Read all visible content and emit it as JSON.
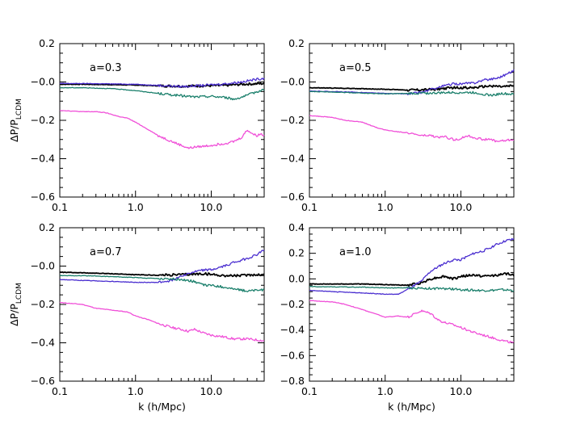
{
  "chart_data": [
    {
      "type": "line",
      "annotation": "a=0.3",
      "xlabel": "",
      "ylabel": "ΔP/P_LCDM",
      "x_scale": "log",
      "xlim": [
        0.1,
        50
      ],
      "ylim": [
        -0.6,
        0.2
      ],
      "xticks": [
        0.1,
        1.0,
        10.0
      ],
      "xtick_labels": [
        "0.1",
        "1.0",
        "10.0"
      ],
      "yticks": [
        -0.6,
        -0.4,
        -0.2,
        0.0,
        0.2
      ],
      "ytick_labels": [
        "−0.6",
        "−0.4",
        "−0.2",
        "−0.0",
        "0.2"
      ],
      "series": [
        {
          "color": "#000000",
          "x": [
            0.1,
            0.2,
            0.5,
            1,
            2,
            4,
            8,
            15,
            25,
            35,
            50
          ],
          "y": [
            -0.012,
            -0.012,
            -0.014,
            -0.016,
            -0.02,
            -0.022,
            -0.02,
            -0.018,
            -0.012,
            -0.01,
            -0.008
          ]
        },
        {
          "color": "#4b2fd0",
          "x": [
            0.1,
            0.2,
            0.5,
            1,
            2,
            4,
            8,
            15,
            25,
            35,
            50
          ],
          "y": [
            -0.008,
            -0.008,
            -0.01,
            -0.012,
            -0.018,
            -0.024,
            -0.018,
            -0.01,
            0.0,
            0.01,
            0.02
          ]
        },
        {
          "color": "#1a7f6b",
          "x": [
            0.1,
            0.2,
            0.5,
            1,
            2,
            4,
            6,
            10,
            15,
            20,
            30,
            40,
            50
          ],
          "y": [
            -0.03,
            -0.03,
            -0.035,
            -0.045,
            -0.06,
            -0.072,
            -0.078,
            -0.075,
            -0.08,
            -0.09,
            -0.07,
            -0.05,
            -0.04
          ]
        },
        {
          "color": "#f050d8",
          "x": [
            0.1,
            0.2,
            0.3,
            0.4,
            0.6,
            0.8,
            1.0,
            1.5,
            2,
            3,
            4,
            5,
            6,
            8,
            10,
            15,
            20,
            25,
            30,
            35,
            40,
            45,
            50
          ],
          "y": [
            -0.148,
            -0.155,
            -0.155,
            -0.16,
            -0.18,
            -0.19,
            -0.21,
            -0.25,
            -0.28,
            -0.31,
            -0.33,
            -0.345,
            -0.34,
            -0.335,
            -0.33,
            -0.32,
            -0.31,
            -0.29,
            -0.25,
            -0.27,
            -0.28,
            -0.27,
            -0.28
          ]
        }
      ]
    },
    {
      "type": "line",
      "annotation": "a=0.5",
      "xlabel": "",
      "ylabel": "",
      "x_scale": "log",
      "xlim": [
        0.1,
        50
      ],
      "ylim": [
        -0.6,
        0.2
      ],
      "xticks": [
        0.1,
        1.0,
        10.0
      ],
      "xtick_labels": [
        "0.1",
        "1.0",
        "10.0"
      ],
      "yticks": [
        -0.6,
        -0.4,
        -0.2,
        0.0,
        0.2
      ],
      "ytick_labels": [
        "−0.6",
        "−0.4",
        "−0.2",
        "−0.0",
        "0.2"
      ],
      "series": [
        {
          "color": "#000000",
          "x": [
            0.1,
            0.2,
            0.5,
            1,
            2,
            4,
            8,
            15,
            25,
            35,
            50
          ],
          "y": [
            -0.03,
            -0.032,
            -0.035,
            -0.038,
            -0.042,
            -0.04,
            -0.03,
            -0.03,
            -0.02,
            -0.025,
            -0.02
          ]
        },
        {
          "color": "#4b2fd0",
          "x": [
            0.1,
            0.2,
            0.5,
            1,
            2,
            3,
            4,
            6,
            8,
            10,
            15,
            20,
            30,
            40,
            50
          ],
          "y": [
            -0.048,
            -0.05,
            -0.055,
            -0.06,
            -0.062,
            -0.055,
            -0.04,
            -0.02,
            -0.01,
            -0.01,
            -0.005,
            0.01,
            0.02,
            0.04,
            0.06
          ]
        },
        {
          "color": "#1a7f6b",
          "x": [
            0.1,
            0.2,
            0.5,
            1,
            2,
            4,
            8,
            15,
            25,
            35,
            50
          ],
          "y": [
            -0.05,
            -0.052,
            -0.058,
            -0.062,
            -0.06,
            -0.058,
            -0.055,
            -0.055,
            -0.07,
            -0.06,
            -0.065
          ]
        },
        {
          "color": "#f050d8",
          "x": [
            0.1,
            0.2,
            0.3,
            0.5,
            0.8,
            1.0,
            1.5,
            2,
            3,
            4,
            5,
            6,
            8,
            10,
            12,
            15,
            20,
            25,
            30,
            40,
            50
          ],
          "y": [
            -0.175,
            -0.185,
            -0.2,
            -0.21,
            -0.24,
            -0.25,
            -0.26,
            -0.265,
            -0.28,
            -0.28,
            -0.29,
            -0.285,
            -0.3,
            -0.295,
            -0.28,
            -0.29,
            -0.3,
            -0.3,
            -0.31,
            -0.305,
            -0.3
          ]
        }
      ]
    },
    {
      "type": "line",
      "annotation": "a=0.7",
      "xlabel": "k (h/Mpc)",
      "ylabel": "ΔP/P_LCDM",
      "x_scale": "log",
      "xlim": [
        0.1,
        50
      ],
      "ylim": [
        -0.6,
        0.2
      ],
      "xticks": [
        0.1,
        1.0,
        10.0
      ],
      "xtick_labels": [
        "0.1",
        "1.0",
        "10.0"
      ],
      "yticks": [
        -0.6,
        -0.4,
        -0.2,
        0.0,
        0.2
      ],
      "ytick_labels": [
        "−0.6",
        "−0.4",
        "−0.2",
        "−0.0",
        "0.2"
      ],
      "series": [
        {
          "color": "#000000",
          "x": [
            0.1,
            0.2,
            0.5,
            1,
            2,
            4,
            8,
            15,
            25,
            35,
            50
          ],
          "y": [
            -0.032,
            -0.035,
            -0.04,
            -0.045,
            -0.048,
            -0.045,
            -0.04,
            -0.05,
            -0.05,
            -0.045,
            -0.045
          ]
        },
        {
          "color": "#4b2fd0",
          "x": [
            0.1,
            0.2,
            0.5,
            1,
            2,
            3,
            4,
            6,
            8,
            10,
            15,
            20,
            30,
            40,
            50
          ],
          "y": [
            -0.07,
            -0.075,
            -0.08,
            -0.085,
            -0.085,
            -0.075,
            -0.05,
            -0.03,
            -0.02,
            -0.02,
            0.0,
            0.02,
            0.04,
            0.06,
            0.085
          ]
        },
        {
          "color": "#1a7f6b",
          "x": [
            0.1,
            0.2,
            0.5,
            1,
            2,
            4,
            6,
            8,
            10,
            15,
            20,
            30,
            40,
            50
          ],
          "y": [
            -0.05,
            -0.05,
            -0.055,
            -0.06,
            -0.065,
            -0.07,
            -0.08,
            -0.1,
            -0.1,
            -0.11,
            -0.12,
            -0.13,
            -0.125,
            -0.125
          ]
        },
        {
          "color": "#f050d8",
          "x": [
            0.1,
            0.2,
            0.3,
            0.5,
            0.8,
            1.0,
            1.5,
            2,
            3,
            4,
            5,
            6,
            8,
            10,
            15,
            20,
            30,
            40,
            50
          ],
          "y": [
            -0.19,
            -0.2,
            -0.22,
            -0.23,
            -0.24,
            -0.26,
            -0.28,
            -0.3,
            -0.32,
            -0.33,
            -0.34,
            -0.33,
            -0.35,
            -0.36,
            -0.37,
            -0.38,
            -0.38,
            -0.385,
            -0.39
          ]
        }
      ]
    },
    {
      "type": "line",
      "annotation": "a=1.0",
      "xlabel": "k (h/Mpc)",
      "ylabel": "",
      "x_scale": "log",
      "xlim": [
        0.1,
        50
      ],
      "ylim": [
        -0.8,
        0.4
      ],
      "xticks": [
        0.1,
        1.0,
        10.0
      ],
      "xtick_labels": [
        "0.1",
        "1.0",
        "10.0"
      ],
      "yticks": [
        -0.8,
        -0.6,
        -0.4,
        -0.2,
        0.0,
        0.2,
        0.4
      ],
      "ytick_labels": [
        "−0.8",
        "−0.6",
        "−0.4",
        "−0.2",
        "0.0",
        "0.2",
        "0.4"
      ],
      "series": [
        {
          "color": "#000000",
          "x": [
            0.1,
            0.2,
            0.5,
            1,
            2,
            3,
            4,
            6,
            8,
            10,
            15,
            20,
            30,
            40,
            50
          ],
          "y": [
            -0.04,
            -0.04,
            -0.04,
            -0.045,
            -0.05,
            -0.03,
            0.0,
            0.02,
            0.0,
            0.02,
            0.03,
            0.02,
            0.03,
            0.04,
            0.03
          ]
        },
        {
          "color": "#4b2fd0",
          "x": [
            0.1,
            0.2,
            0.5,
            1,
            1.5,
            2,
            3,
            4,
            6,
            8,
            10,
            15,
            20,
            30,
            40,
            50
          ],
          "y": [
            -0.09,
            -0.1,
            -0.11,
            -0.12,
            -0.12,
            -0.08,
            -0.02,
            0.06,
            0.12,
            0.15,
            0.15,
            0.2,
            0.22,
            0.27,
            0.3,
            0.31
          ]
        },
        {
          "color": "#1a7f6b",
          "x": [
            0.1,
            0.2,
            0.5,
            1,
            2,
            4,
            8,
            15,
            25,
            35,
            50
          ],
          "y": [
            -0.06,
            -0.062,
            -0.065,
            -0.07,
            -0.07,
            -0.075,
            -0.08,
            -0.09,
            -0.09,
            -0.085,
            -0.09
          ]
        },
        {
          "color": "#f050d8",
          "x": [
            0.1,
            0.2,
            0.3,
            0.5,
            0.8,
            1.0,
            1.5,
            2,
            2.5,
            3,
            4,
            5,
            6,
            8,
            10,
            15,
            20,
            30,
            40,
            50
          ],
          "y": [
            -0.17,
            -0.18,
            -0.2,
            -0.24,
            -0.28,
            -0.3,
            -0.29,
            -0.3,
            -0.27,
            -0.25,
            -0.27,
            -0.32,
            -0.34,
            -0.36,
            -0.38,
            -0.42,
            -0.44,
            -0.47,
            -0.49,
            -0.5
          ]
        }
      ]
    }
  ]
}
